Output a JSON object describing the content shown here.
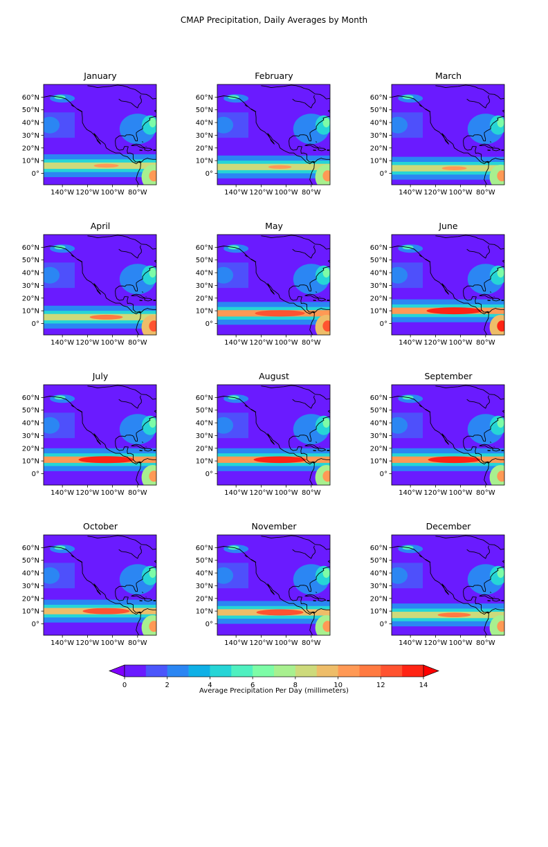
{
  "title": "CMAP Precipitation, Daily Averages by Month",
  "panels": [
    {
      "month": "January",
      "itcz_intensity": 0.45,
      "itcz_lat": 6,
      "amazon_intensity": 0.6
    },
    {
      "month": "February",
      "itcz_intensity": 0.42,
      "itcz_lat": 5,
      "amazon_intensity": 0.6
    },
    {
      "month": "March",
      "itcz_intensity": 0.45,
      "itcz_lat": 4,
      "amazon_intensity": 0.6
    },
    {
      "month": "April",
      "itcz_intensity": 0.6,
      "itcz_lat": 5,
      "amazon_intensity": 0.9
    },
    {
      "month": "May",
      "itcz_intensity": 0.9,
      "itcz_lat": 8,
      "amazon_intensity": 0.9
    },
    {
      "month": "June",
      "itcz_intensity": 1.0,
      "itcz_lat": 10,
      "amazon_intensity": 0.95
    },
    {
      "month": "July",
      "itcz_intensity": 1.0,
      "itcz_lat": 11,
      "amazon_intensity": 0.55
    },
    {
      "month": "August",
      "itcz_intensity": 0.95,
      "itcz_lat": 11,
      "amazon_intensity": 0.5
    },
    {
      "month": "September",
      "itcz_intensity": 0.95,
      "itcz_lat": 11,
      "amazon_intensity": 0.5
    },
    {
      "month": "October",
      "itcz_intensity": 0.85,
      "itcz_lat": 10,
      "amazon_intensity": 0.5
    },
    {
      "month": "November",
      "itcz_intensity": 0.85,
      "itcz_lat": 9,
      "amazon_intensity": 0.55
    },
    {
      "month": "December",
      "itcz_intensity": 0.6,
      "itcz_lat": 7,
      "amazon_intensity": 0.6
    }
  ],
  "map_extent": {
    "lon": [
      -155,
      -65
    ],
    "lat": [
      -9,
      70
    ]
  },
  "x_ticks": [
    "140°W",
    "120°W",
    "100°W",
    "80°W"
  ],
  "x_tick_values": [
    -140,
    -120,
    -100,
    -80
  ],
  "y_ticks": [
    "60°N",
    "50°N",
    "40°N",
    "30°N",
    "20°N",
    "10°N",
    "0°"
  ],
  "y_tick_values": [
    60,
    50,
    40,
    30,
    20,
    10,
    0
  ],
  "colorbar": {
    "label": "Average Precipitation Per Day (millimeters)",
    "tick_labels": [
      "0",
      "2",
      "4",
      "6",
      "8",
      "10",
      "12",
      "14"
    ],
    "min": 0,
    "max": 14,
    "colors": [
      "#6a1bff",
      "#4b56fb",
      "#2b86f3",
      "#0fb0e6",
      "#26d5d6",
      "#4ff0c0",
      "#7dfca7",
      "#a8f08f",
      "#cdda7b",
      "#eebd69",
      "#ff9955",
      "#ff7a41",
      "#ff5330",
      "#ff2414"
    ],
    "under_color": "#8000ff",
    "over_color": "#ff0000"
  }
}
